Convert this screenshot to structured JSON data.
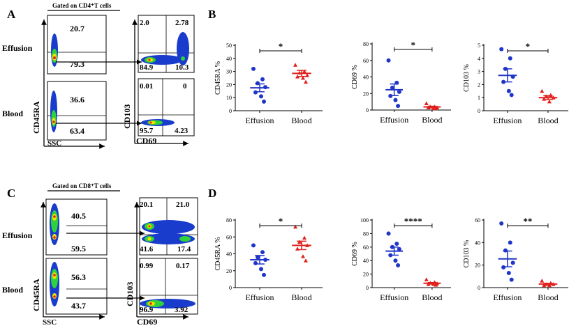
{
  "colors": {
    "effusion": "#1f35c8",
    "blood": "#e0201c",
    "axis": "#000000",
    "flow_low": "#1a3ccc",
    "flow_mid": "#2fd23a",
    "flow_high": "#f2e400",
    "flow_peak": "#e8231b"
  },
  "panels": {
    "A": {
      "letter": "A",
      "gate": "Gated on CD4⁺T cells",
      "row1": "Effusion",
      "row2": "Blood",
      "left_ylabel": "CD45RA",
      "left_xlabel": "SSC",
      "right_ylabel": "CD103",
      "right_xlabel": "CD69",
      "q": {
        "e_top": "20.7",
        "e_bot": "79.3",
        "b_top": "36.6",
        "b_bot": "63.4",
        "e_ul": "2.0",
        "e_ur": "2.78",
        "e_ll": "84.9",
        "e_lr": "10.3",
        "b_ul": "0.01",
        "b_ur": "0",
        "b_ll": "95.7",
        "b_lr": "4.23"
      }
    },
    "C": {
      "letter": "C",
      "gate": "Gated on CD8⁺T cells",
      "row1": "Effusion",
      "row2": "Blood",
      "left_ylabel": "CD45RA",
      "left_xlabel": "SSC",
      "right_ylabel": "CD103",
      "right_xlabel": "CD69",
      "q": {
        "e_top": "40.5",
        "e_bot": "59.5",
        "b_top": "56.3",
        "b_bot": "43.7",
        "e_ul": "20.1",
        "e_ur": "21.0",
        "e_ll": "41.6",
        "e_lr": "17.4",
        "b_ul": "0.99",
        "b_ur": "0.17",
        "b_ll": "96.9",
        "b_lr": "3.92"
      }
    },
    "B": {
      "letter": "B"
    },
    "D": {
      "letter": "D"
    }
  },
  "chart_data": [
    {
      "panel": "B",
      "type": "scatter",
      "ylabel": "CD45RA %",
      "ylim": [
        0,
        50
      ],
      "yticks": [
        0,
        10,
        20,
        30,
        40,
        50
      ],
      "categories": [
        "Effusion",
        "Blood"
      ],
      "significance": "*",
      "series": [
        {
          "name": "Effusion",
          "values": [
            32,
            24,
            21,
            18,
            14,
            11,
            7
          ],
          "mean": 17.5,
          "sem": 3
        },
        {
          "name": "Blood",
          "values": [
            35,
            30,
            29,
            27,
            26,
            25,
            22
          ],
          "mean": 28.5,
          "sem": 2.3
        }
      ]
    },
    {
      "panel": "B",
      "type": "scatter",
      "ylabel": "CD69 %",
      "ylim": [
        0,
        80
      ],
      "yticks": [
        0,
        20,
        40,
        60,
        80
      ],
      "categories": [
        "Effusion",
        "Blood"
      ],
      "significance": "*",
      "series": [
        {
          "name": "Effusion",
          "values": [
            60,
            33,
            27,
            22,
            17,
            12,
            5
          ],
          "mean": 24.5,
          "sem": 7
        },
        {
          "name": "Blood",
          "values": [
            8,
            4,
            4,
            3,
            3,
            2,
            2
          ],
          "mean": 3.8,
          "sem": 0.8
        }
      ]
    },
    {
      "panel": "B",
      "type": "scatter",
      "ylabel": "CD103 %",
      "ylim": [
        0,
        5
      ],
      "yticks": [
        0,
        1,
        2,
        3,
        4,
        5
      ],
      "categories": [
        "Effusion",
        "Blood"
      ],
      "significance": "*",
      "series": [
        {
          "name": "Effusion",
          "values": [
            4.7,
            4.0,
            3.2,
            2.6,
            2.2,
            1.5,
            1.2
          ],
          "mean": 2.7,
          "sem": 0.5
        },
        {
          "name": "Blood",
          "values": [
            1.5,
            1.2,
            1.1,
            1.0,
            0.9,
            0.7
          ],
          "mean": 1.0,
          "sem": 0.15
        }
      ]
    },
    {
      "panel": "D",
      "type": "scatter",
      "ylabel": "CD45RA %",
      "ylim": [
        0,
        80
      ],
      "yticks": [
        0,
        20,
        40,
        60,
        80
      ],
      "categories": [
        "Effusion",
        "Blood"
      ],
      "significance": "*",
      "series": [
        {
          "name": "Effusion",
          "values": [
            50,
            42,
            36,
            33,
            29,
            22,
            15
          ],
          "mean": 33,
          "sem": 5
        },
        {
          "name": "Blood",
          "values": [
            72,
            59,
            54,
            50,
            46,
            37,
            32
          ],
          "mean": 50,
          "sem": 5
        }
      ]
    },
    {
      "panel": "D",
      "type": "scatter",
      "ylabel": "CD69 %",
      "ylim": [
        0,
        100
      ],
      "yticks": [
        0,
        20,
        40,
        60,
        80,
        100
      ],
      "categories": [
        "Effusion",
        "Blood"
      ],
      "significance": "****",
      "series": [
        {
          "name": "Effusion",
          "values": [
            80,
            65,
            60,
            57,
            48,
            40,
            33
          ],
          "mean": 54,
          "sem": 6
        },
        {
          "name": "Blood",
          "values": [
            12,
            8,
            7,
            6,
            5,
            5,
            4
          ],
          "mean": 6.5,
          "sem": 1
        }
      ]
    },
    {
      "panel": "D",
      "type": "scatter",
      "ylabel": "CD103 %",
      "ylim": [
        0,
        60
      ],
      "yticks": [
        0,
        20,
        40,
        60
      ],
      "categories": [
        "Effusion",
        "Blood"
      ],
      "significance": "**",
      "series": [
        {
          "name": "Effusion",
          "values": [
            57,
            40,
            33,
            22,
            18,
            13,
            7
          ],
          "mean": 25.5,
          "sem": 7
        },
        {
          "name": "Blood",
          "values": [
            6,
            4,
            3,
            3,
            2,
            2
          ],
          "mean": 3.2,
          "sem": 0.6
        }
      ]
    }
  ]
}
